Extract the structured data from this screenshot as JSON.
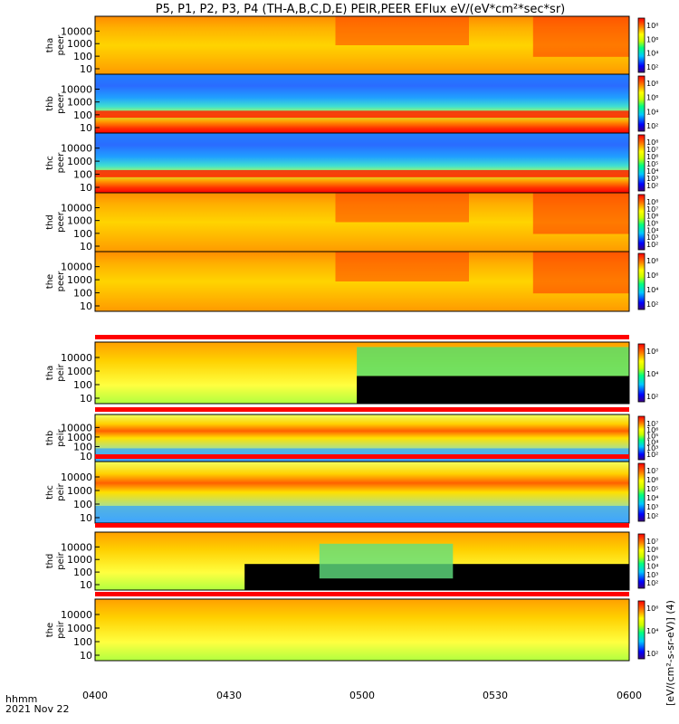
{
  "chart_data": {
    "type": "heatmap",
    "title": "P5, P1, P2, P3, P4 (TH-A,B,C,D,E) PEIR,PEER EFlux eV/(eV*cm²*sec*sr)",
    "x_axis": {
      "tick_labels": [
        "0400",
        "0430",
        "0500",
        "0530",
        "0600"
      ],
      "range": [
        "04:00",
        "06:00"
      ],
      "corner_label_1": "hhmm",
      "corner_label_2": "2021 Nov 22"
    },
    "y_ticks": [
      "10000",
      "1000",
      "100",
      "10"
    ],
    "y_scale": "log",
    "colorbar_label": "[eV/(cm²-s-sr-eV)] (4)",
    "panels": [
      {
        "name": "tha peer",
        "probe": "tha",
        "kind": "peer",
        "cbar_ticks": [
          "10⁸",
          "10⁶",
          "10⁴",
          "10²"
        ],
        "status_bar": false
      },
      {
        "name": "thb peer",
        "probe": "thb",
        "kind": "peer",
        "cbar_ticks": [
          "10⁸",
          "10⁶",
          "10⁴",
          "10²"
        ],
        "status_bar": false
      },
      {
        "name": "thc peer",
        "probe": "thc",
        "kind": "peer",
        "cbar_ticks": [
          "10⁸",
          "10⁷",
          "10⁶",
          "10⁵",
          "10⁴",
          "10³",
          "10²"
        ],
        "status_bar": false
      },
      {
        "name": "thd peer",
        "probe": "thd",
        "kind": "peer",
        "cbar_ticks": [
          "10⁸",
          "10⁷",
          "10⁶",
          "10⁵",
          "10⁴",
          "10³",
          "10²"
        ],
        "status_bar": false
      },
      {
        "name": "the peer",
        "probe": "the",
        "kind": "peer",
        "cbar_ticks": [
          "10⁸",
          "10⁶",
          "10⁴",
          "10²"
        ],
        "status_bar": false
      },
      {
        "name": "tha peir",
        "probe": "tha",
        "kind": "peir",
        "cbar_ticks": [
          "10⁶",
          "10⁴",
          "10²"
        ],
        "status_bar": true
      },
      {
        "name": "thb peir",
        "probe": "thb",
        "kind": "peir",
        "cbar_ticks": [
          "10⁷",
          "10⁶",
          "10⁵",
          "10⁴",
          "10³",
          "10²"
        ],
        "status_bar": true
      },
      {
        "name": "thc peir",
        "probe": "thc",
        "kind": "peir",
        "cbar_ticks": [
          "10⁷",
          "10⁶",
          "10⁵",
          "10⁴",
          "10³",
          "10²"
        ],
        "status_bar": true
      },
      {
        "name": "thd peir",
        "probe": "thd",
        "kind": "peir",
        "cbar_ticks": [
          "10⁷",
          "10⁶",
          "10⁵",
          "10⁴",
          "10³",
          "10²"
        ],
        "status_bar": true
      },
      {
        "name": "the peir",
        "probe": "the",
        "kind": "peir",
        "cbar_ticks": [
          "10⁶",
          "10⁴",
          "10²"
        ],
        "status_bar": true
      }
    ]
  }
}
